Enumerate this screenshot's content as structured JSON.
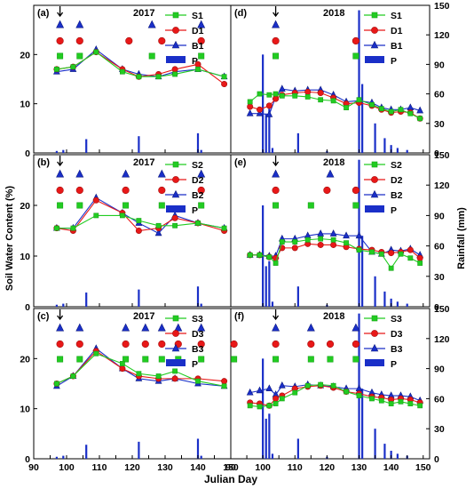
{
  "figure": {
    "ylabel_left": "Soil Water Content (%)",
    "ylabel_right": "Rainfall (mm)",
    "xlabel": "Julian Day",
    "colors": {
      "S": "#22cc22",
      "D": "#e81818",
      "B": "#1a2fc8",
      "P": "#1a2fc8"
    },
    "icons": {
      "S": "green-square-marker",
      "D": "red-circle-marker",
      "B": "blue-triangle-marker",
      "P": "blue-bar-marker",
      "arrow": "down-arrow-icon"
    }
  },
  "chart_data": [
    {
      "panel": "(a)",
      "year": "2017",
      "type": "line",
      "xlim": [
        90,
        150
      ],
      "xticks": [
        90,
        100,
        110,
        120,
        130,
        140,
        150
      ],
      "ylim": [
        0,
        30
      ],
      "yticks": [
        0,
        10,
        20
      ],
      "legend": [
        "S1",
        "D1",
        "B1",
        "P"
      ],
      "arrow_x": 98,
      "series": [
        {
          "name": "S1",
          "x": [
            97,
            102,
            109,
            117,
            122,
            128,
            133,
            140,
            148
          ],
          "values": [
            17,
            17.5,
            20.5,
            16.5,
            15.5,
            15.5,
            16,
            17,
            15.5
          ]
        },
        {
          "name": "D1",
          "x": [
            97,
            102,
            109,
            117,
            122,
            128,
            133,
            140,
            148
          ],
          "values": [
            17,
            17.5,
            20.5,
            17,
            15.5,
            16,
            17,
            18,
            14
          ]
        },
        {
          "name": "B1",
          "x": [
            97,
            102,
            109,
            117,
            122,
            128,
            133,
            140,
            148
          ],
          "values": [
            16.5,
            17,
            21,
            17,
            16,
            15.5,
            16.5,
            17,
            15.5
          ]
        }
      ],
      "events": [
        {
          "name": "S1",
          "x": [
            98,
            104,
            126,
            141
          ]
        },
        {
          "name": "D1",
          "x": [
            98,
            104,
            119,
            129,
            141
          ]
        },
        {
          "name": "B1",
          "x": [
            98,
            104,
            126,
            141
          ]
        }
      ],
      "rain": {
        "x": [
          97,
          99,
          106,
          122,
          140,
          141
        ],
        "values": [
          2,
          3,
          14,
          17,
          20,
          3
        ]
      }
    },
    {
      "panel": "(d)",
      "year": "2018",
      "type": "line",
      "xlim": [
        90,
        152
      ],
      "xticks": [
        90,
        100,
        110,
        120,
        130,
        140,
        150
      ],
      "ylim": [
        0,
        150
      ],
      "yticks": [
        0,
        30,
        60,
        90,
        120,
        150
      ],
      "legend": [
        "S1",
        "D1",
        "B1",
        "P"
      ],
      "arrow_x": 104,
      "series": [
        {
          "name": "S1",
          "x": [
            96,
            99,
            102,
            104,
            106,
            110,
            114,
            118,
            122,
            126,
            130,
            134,
            137,
            140,
            143,
            146,
            149
          ],
          "values": [
            52,
            60,
            59,
            60,
            58,
            58,
            57,
            54,
            53,
            46,
            54,
            49,
            45,
            42,
            44,
            40,
            35
          ]
        },
        {
          "name": "D1",
          "x": [
            96,
            99,
            102,
            104,
            106,
            110,
            114,
            118,
            122,
            126,
            130,
            134,
            137,
            140,
            143,
            146,
            149
          ],
          "values": [
            47,
            44,
            48,
            55,
            59,
            61,
            62,
            61,
            56,
            50,
            51,
            48,
            44,
            41,
            42,
            41,
            35
          ]
        },
        {
          "name": "B1",
          "x": [
            96,
            99,
            102,
            104,
            106,
            110,
            114,
            118,
            122,
            126,
            130,
            134,
            137,
            140,
            143,
            146,
            149
          ],
          "values": [
            40,
            40,
            39,
            57,
            65,
            63,
            64,
            64,
            59,
            52,
            53,
            51,
            46,
            44,
            44,
            46,
            43
          ]
        }
      ],
      "events": [
        {
          "name": "S1",
          "x": [
            104,
            129
          ]
        },
        {
          "name": "D1",
          "x": [
            104,
            129
          ]
        },
        {
          "name": "B1",
          "x": [
            104
          ]
        }
      ],
      "rain": {
        "x": [
          100,
          101,
          102,
          103,
          111,
          120,
          130,
          131,
          135,
          138,
          140,
          142,
          145
        ],
        "values": [
          100,
          40,
          45,
          5,
          20,
          2,
          145,
          70,
          30,
          15,
          8,
          5,
          3
        ]
      }
    },
    {
      "panel": "(b)",
      "year": "2017",
      "type": "line",
      "xlim": [
        90,
        150
      ],
      "xticks": [
        90,
        100,
        110,
        120,
        130,
        140,
        150
      ],
      "ylim": [
        0,
        30
      ],
      "yticks": [
        0,
        10,
        20
      ],
      "legend": [
        "S2",
        "D2",
        "B2",
        "P"
      ],
      "arrow_x": 98,
      "series": [
        {
          "name": "S2",
          "x": [
            97,
            102,
            109,
            117,
            122,
            128,
            133,
            140,
            148
          ],
          "values": [
            15.5,
            15.5,
            18,
            18,
            17,
            16,
            16,
            16.5,
            15.5
          ]
        },
        {
          "name": "D2",
          "x": [
            97,
            102,
            109,
            117,
            122,
            128,
            133,
            140,
            148
          ],
          "values": [
            15.5,
            15,
            21,
            18.5,
            15,
            15.5,
            17.5,
            16.5,
            15
          ]
        },
        {
          "name": "B2",
          "x": [
            97,
            102,
            109,
            117,
            122,
            128,
            133,
            140,
            148
          ],
          "values": [
            15.5,
            15.5,
            21.5,
            18.5,
            16.5,
            14.5,
            18,
            16.5,
            15.5
          ]
        }
      ],
      "events": [
        {
          "name": "S2",
          "x": [
            98,
            104,
            118,
            129,
            141
          ]
        },
        {
          "name": "D2",
          "x": [
            98,
            104,
            118,
            129,
            141
          ]
        },
        {
          "name": "B2",
          "x": [
            98,
            104,
            118,
            129,
            141
          ]
        }
      ],
      "rain": {
        "x": [
          97,
          99,
          106,
          122,
          140,
          141
        ],
        "values": [
          2,
          3,
          14,
          17,
          20,
          3
        ]
      }
    },
    {
      "panel": "(e)",
      "year": "2018",
      "type": "line",
      "xlim": [
        90,
        152
      ],
      "xticks": [
        90,
        100,
        110,
        120,
        130,
        140,
        150
      ],
      "ylim": [
        0,
        150
      ],
      "yticks": [
        0,
        30,
        60,
        90,
        120,
        150
      ],
      "legend": [
        "S2",
        "D2",
        "B2",
        "P"
      ],
      "arrow_x": 104,
      "series": [
        {
          "name": "S2",
          "x": [
            96,
            99,
            102,
            104,
            106,
            110,
            114,
            118,
            122,
            126,
            130,
            134,
            137,
            140,
            143,
            146,
            149
          ],
          "values": [
            51,
            51,
            49,
            43,
            64,
            64,
            66,
            67,
            66,
            63,
            56,
            54,
            52,
            38,
            52,
            48,
            43
          ]
        },
        {
          "name": "D2",
          "x": [
            96,
            99,
            102,
            104,
            106,
            110,
            114,
            118,
            122,
            126,
            130,
            134,
            137,
            140,
            143,
            146,
            149
          ],
          "values": [
            51,
            51,
            49,
            48,
            58,
            58,
            62,
            61,
            61,
            59,
            57,
            56,
            54,
            53,
            54,
            56,
            48
          ]
        },
        {
          "name": "B2",
          "x": [
            96,
            99,
            102,
            104,
            106,
            110,
            114,
            118,
            122,
            126,
            130,
            134,
            137,
            140,
            143,
            146,
            149
          ],
          "values": [
            51,
            51,
            50,
            50,
            67,
            67,
            70,
            72,
            72,
            70,
            70,
            54,
            52,
            56,
            55,
            57,
            51
          ]
        }
      ],
      "events": [
        {
          "name": "S2",
          "x": [
            104,
            115,
            129
          ]
        },
        {
          "name": "D2",
          "x": [
            104,
            120,
            129
          ]
        },
        {
          "name": "B2",
          "x": [
            104,
            121
          ]
        }
      ],
      "rain": {
        "x": [
          100,
          101,
          102,
          103,
          111,
          120,
          130,
          131,
          135,
          138,
          140,
          142,
          145
        ],
        "values": [
          100,
          40,
          45,
          5,
          20,
          2,
          145,
          70,
          30,
          15,
          8,
          5,
          3
        ]
      }
    },
    {
      "panel": "(c)",
      "year": "2017",
      "type": "line",
      "xlim": [
        90,
        150
      ],
      "xticks": [
        90,
        95,
        100,
        105,
        110,
        115,
        120,
        125,
        130,
        135,
        140,
        145,
        150
      ],
      "xtick_labels": [
        "90",
        "",
        "100",
        "",
        "110",
        "",
        "120",
        "",
        "130",
        "",
        "140",
        "",
        "150"
      ],
      "ylim": [
        0,
        30
      ],
      "yticks": [
        0,
        10,
        20
      ],
      "legend": [
        "S3",
        "D3",
        "B3",
        "P"
      ],
      "arrow_x": 98,
      "series": [
        {
          "name": "S3",
          "x": [
            97,
            102,
            109,
            117,
            122,
            128,
            133,
            140,
            148
          ],
          "values": [
            15,
            16.5,
            21,
            19,
            17,
            16.5,
            17.5,
            15.5,
            14.5
          ]
        },
        {
          "name": "D3",
          "x": [
            97,
            102,
            109,
            117,
            122,
            128,
            133,
            140,
            148
          ],
          "values": [
            15,
            16.5,
            21.5,
            18,
            16.5,
            16,
            16,
            16,
            15.5
          ]
        },
        {
          "name": "B3",
          "x": [
            97,
            102,
            109,
            117,
            122,
            128,
            133,
            140,
            148
          ],
          "values": [
            14.5,
            16.5,
            22,
            18,
            16,
            15.5,
            16,
            15,
            14.5
          ]
        }
      ],
      "events": [
        {
          "name": "S3",
          "x": [
            98,
            104,
            118,
            124,
            129,
            134,
            141
          ]
        },
        {
          "name": "D3",
          "x": [
            98,
            104,
            118,
            124,
            129,
            134,
            141
          ]
        },
        {
          "name": "B3",
          "x": [
            98,
            104,
            118,
            124,
            129,
            134,
            141
          ]
        }
      ],
      "rain": {
        "x": [
          97,
          99,
          106,
          122,
          140,
          141
        ],
        "values": [
          2,
          3,
          14,
          17,
          20,
          3
        ]
      }
    },
    {
      "panel": "(f)",
      "year": "2018",
      "type": "line",
      "xlim": [
        90,
        152
      ],
      "xticks": [
        90,
        95,
        100,
        105,
        110,
        115,
        120,
        125,
        130,
        135,
        140,
        145,
        150
      ],
      "xtick_labels": [
        "90",
        "",
        "100",
        "",
        "110",
        "",
        "120",
        "",
        "130",
        "",
        "140",
        "",
        "150"
      ],
      "ylim": [
        0,
        150
      ],
      "yticks": [
        0,
        30,
        60,
        90,
        120,
        150
      ],
      "legend": [
        "S3",
        "D3",
        "B3",
        "P"
      ],
      "arrow_x": 104,
      "series": [
        {
          "name": "S3",
          "x": [
            96,
            99,
            102,
            104,
            106,
            110,
            114,
            118,
            122,
            126,
            130,
            134,
            137,
            140,
            143,
            146,
            149
          ],
          "values": [
            53,
            52,
            53,
            55,
            60,
            66,
            73,
            74,
            73,
            67,
            63,
            60,
            58,
            55,
            57,
            55,
            53
          ]
        },
        {
          "name": "D3",
          "x": [
            96,
            99,
            102,
            104,
            106,
            110,
            114,
            118,
            122,
            126,
            130,
            134,
            137,
            140,
            143,
            146,
            149
          ],
          "values": [
            56,
            55,
            53,
            60,
            63,
            70,
            72,
            73,
            71,
            67,
            65,
            62,
            61,
            59,
            60,
            59,
            56
          ]
        },
        {
          "name": "B3",
          "x": [
            96,
            99,
            102,
            104,
            106,
            110,
            114,
            118,
            122,
            126,
            130,
            134,
            137,
            140,
            143,
            146,
            149
          ],
          "values": [
            66,
            68,
            70,
            64,
            73,
            72,
            74,
            73,
            72,
            70,
            70,
            66,
            64,
            63,
            63,
            62,
            58
          ]
        }
      ],
      "events": [
        {
          "name": "S3",
          "x": [
            91,
            104,
            115,
            121,
            129
          ]
        },
        {
          "name": "D3",
          "x": [
            91,
            104,
            115,
            121,
            129
          ]
        },
        {
          "name": "B3",
          "x": [
            104,
            115,
            129
          ]
        }
      ],
      "rain": {
        "x": [
          100,
          101,
          102,
          103,
          111,
          120,
          130,
          131,
          135,
          138,
          140,
          142,
          145
        ],
        "values": [
          100,
          40,
          45,
          5,
          20,
          2,
          145,
          70,
          30,
          15,
          8,
          5,
          3
        ]
      }
    }
  ]
}
